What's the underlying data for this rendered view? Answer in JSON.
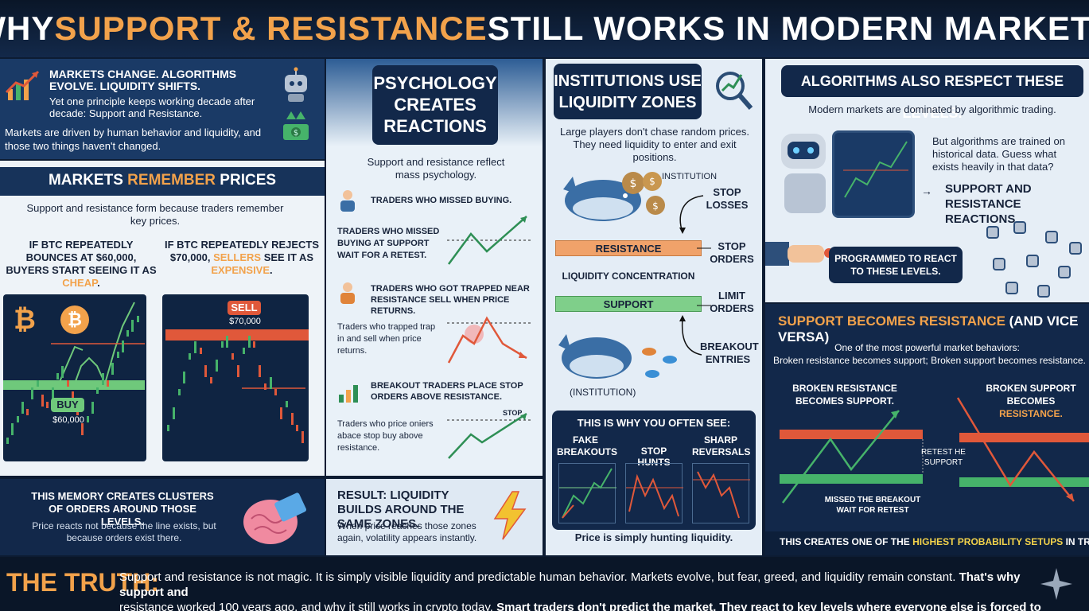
{
  "title": {
    "part1": "WHY ",
    "accent": "SUPPORT & RESISTANCE",
    "part2": " STILL WORKS IN MODERN MARKETS"
  },
  "intro": {
    "headline": "MARKETS CHANGE. ALGORITHMS EVOLVE. LIQUIDITY SHIFTS.",
    "sub": "Yet one principle keeps working decade after decade: Support and Resistance.",
    "body": "Markets are driven by human behavior and liquidity, and those two things haven't changed."
  },
  "memory": {
    "h1": "MARKETS ",
    "h2": "REMEMBER",
    "h3": " PRICES",
    "body": "Support and resistance form because traders remember key prices.",
    "left_a": "IF BTC REPEATEDLY BOUNCES AT $60,000, BUYERS START SEEING IT AS ",
    "left_b": "CHEAP",
    "right_a": "IF BTC REPEATEDLY REJECTS $70,000, ",
    "right_b": "SELLERS",
    "right_c": " SEE IT AS ",
    "right_d": "EXPENSIVE",
    "buy": "BUY",
    "buy_price": "$60,000",
    "sell": "SELL",
    "sell_price": "$70,000",
    "bottom_h": "THIS MEMORY CREATES CLUSTERS OF ORDERS AROUND THOSE LEVELS.",
    "bottom_b": "Price reacts not because the line exists, but because orders exist there."
  },
  "psych": {
    "title": "PSYCHOLOGY CREATES REACTIONS",
    "intro": "Support and resistance reflect mass psychology.",
    "h1": "TRADERS WHO MISSED BUYING.",
    "t1": "TRADERS WHO MISSED BUYING AT SUPPORT WAIT FOR A RETEST.",
    "h2": "TRADERS WHO GOT TRAPPED NEAR RESISTANCE SELL WHEN PRICE RETURNS.",
    "t2": "Traders who trapped trap in and sell when price returns.",
    "h3": "BREAKOUT TRADERS PLACE STOP ORDERS ABOVE RESISTANCE.",
    "t3": "Traders who price oniers abace stop buy above resistance.",
    "stop": "STOP",
    "result_h": "RESULT: LIQUIDITY BUILDS AROUND THE SAME ZONES.",
    "result_b": "When price reaches those zones again, volatility appears instantly."
  },
  "inst": {
    "title": "INSTITUTIONS USE LIQUIDITY ZONES",
    "intro": "Large players don't chase random prices. They need liquidity to enter and exit positions.",
    "institution": "INSTITUTION",
    "institution2": "(INSTITUTION)",
    "stop_losses": "STOP LOSSES",
    "stop_orders": "STOP ORDERS",
    "limit_orders": "LIMIT ORDERS",
    "breakout": "BREAKOUT ENTRIES",
    "resistance": "RESISTANCE",
    "liq": "LIQUIDITY CONCENTRATION",
    "support": "SUPPORT",
    "why": "THIS IS WHY YOU OFTEN SEE:",
    "c1": "FAKE BREAKOUTS",
    "c2": "STOP HUNTS",
    "c3": "SHARP REVERSALS",
    "foot": "Price is simply hunting liquidity."
  },
  "algo": {
    "title": "ALGORITHMS ALSO RESPECT THESE LEVELS.",
    "intro": "Modern markets are dominated by algorithmic trading.",
    "body": "But algorithms are trained on historical data. Guess what exists heavily in that data?",
    "sr": "SUPPORT AND RESISTANCE REACTIONS",
    "prog": "PROGRAMMED TO REACT TO THESE LEVELS."
  },
  "flip": {
    "h1": "SUPPORT BECOMES ",
    "h2": "RESISTANCE",
    "h3": " (AND VICE VERSA)",
    "intro": "One of the most powerful market behaviors:",
    "intro2": "Broken resistance becomes support; Broken support becomes resistance.",
    "l_title": "BROKEN RESISTANCE BECOMES SUPPORT.",
    "r_title_a": "BROKEN SUPPORT BECOMES ",
    "r_title_b": "RESISTANCE.",
    "retest": "RETEST HE SUPPORT",
    "missed": "MISSED THE BREAKOUT WAIT FOR RETEST",
    "foot_a": "THIS CREATES ONE OF THE ",
    "foot_b": "HIGHEST PROBABILITY SETUPS",
    "foot_c": " IN TRADING."
  },
  "truth": {
    "label": "THE TRUTH:",
    "t1": "Support and resistance is not magic. It is simply visible liquidity and predictable human behavior. Markets evolve, but fear, greed, and liquidity remain constant. ",
    "b1": "That's why support and",
    "t2": "resistance worked 100 years ago, and why it still works in crypto today. ",
    "b2": "Smart traders don't predict the market. They react to key levels where everyone else is forced to act."
  },
  "colors": {
    "accent": "#f2a24b",
    "up": "#46b36a",
    "down": "#e0583a",
    "support": "#7fcf8a",
    "resistance": "#f0a26a"
  },
  "icons": [
    "chart-up-icon",
    "robot-icon",
    "money-icon",
    "bitcoin-icon",
    "brain-icon",
    "lightning-icon",
    "whale-icon",
    "money-bag-icon",
    "fish-icon",
    "magnifier-chart-icon",
    "hand-icon",
    "person-icon",
    "bar-chart-icon",
    "star-icon"
  ]
}
